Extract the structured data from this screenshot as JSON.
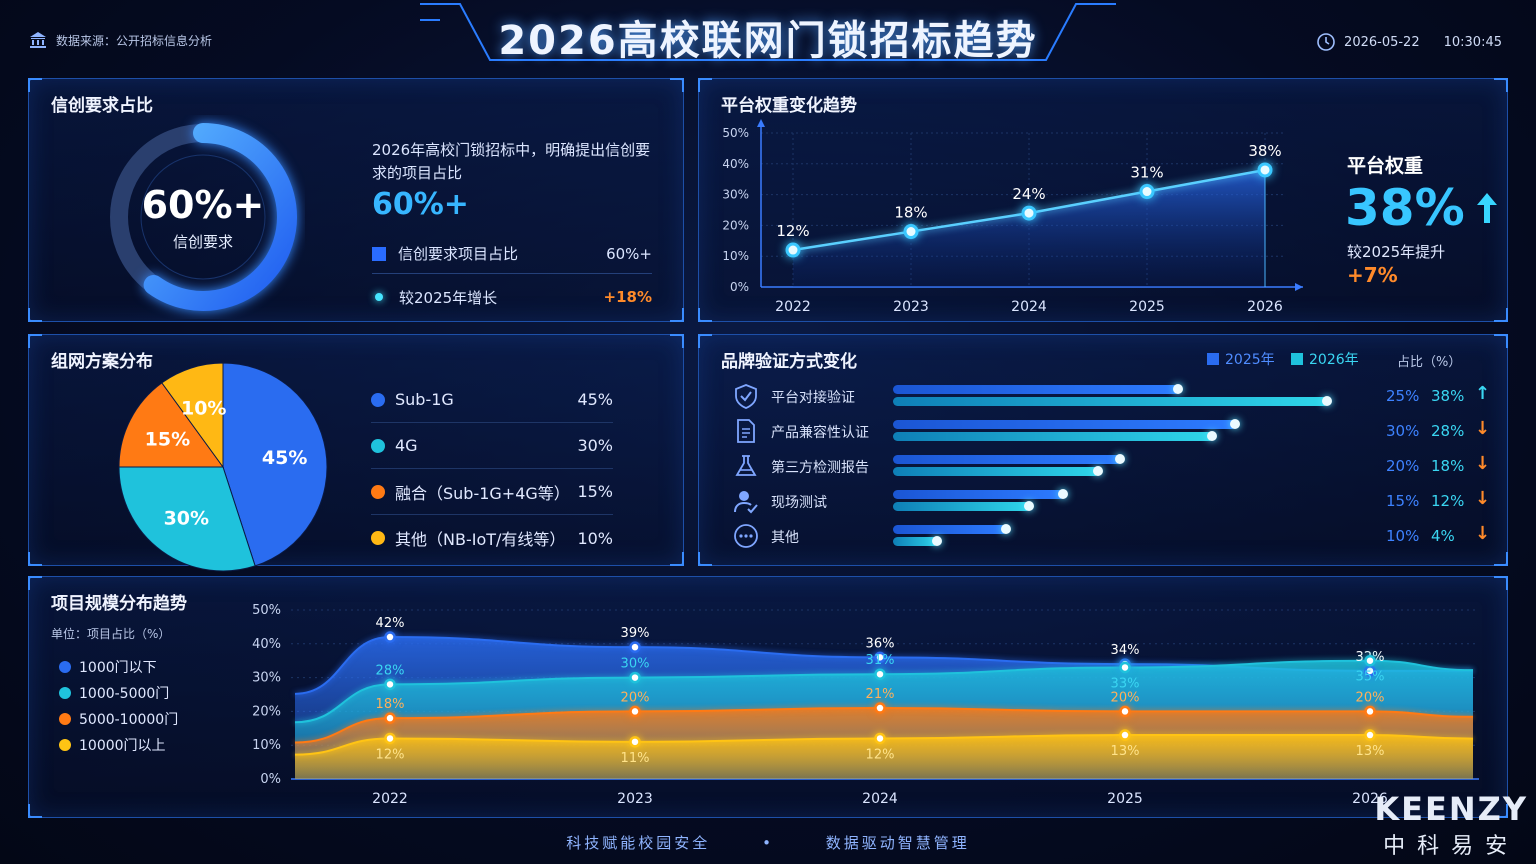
{
  "header": {
    "title": "2026高校联网门锁招标趋势",
    "source": "数据来源：公开招标信息分析",
    "date": "2026-05-22",
    "time": "10:30:45"
  },
  "panel_xinchuang": {
    "title": "信创要求占比",
    "center_value": "60%+",
    "center_label": "信创要求",
    "desc": "2026年高校门锁招标中，明确提出信创要求的项目占比",
    "big": "60%+",
    "row1_label": "信创要求项目占比",
    "row1_value": "60%+",
    "row2_label": "较2025年增长",
    "row2_value": "+18%"
  },
  "panel_platform": {
    "title": "平台权重变化趋势",
    "kpi_title": "平台权重",
    "kpi_value": "38%",
    "kpi_sub": "较2025年提升",
    "kpi_delta": "+7%"
  },
  "panel_network": {
    "title": "组网方案分布",
    "items": [
      {
        "name": "Sub-1G",
        "value": "45%",
        "color": "#2a6cf0"
      },
      {
        "name": "4G",
        "value": "30%",
        "color": "#1fc2dc"
      },
      {
        "name": "融合（Sub-1G+4G等）",
        "value": "15%",
        "color": "#ff7a14"
      },
      {
        "name": "其他（NB-IoT/有线等）",
        "value": "10%",
        "color": "#ffb814"
      }
    ]
  },
  "panel_brand": {
    "title": "品牌验证方式变化",
    "legend_2025": "2025年",
    "legend_2026": "2026年",
    "unit": "占比（%）",
    "rows": [
      {
        "label": "平台对接验证",
        "icon": "shield-check-icon",
        "v2025": "25%",
        "v2026": "38%",
        "trend": "up"
      },
      {
        "label": "产品兼容性认证",
        "icon": "document-icon",
        "v2025": "30%",
        "v2026": "28%",
        "trend": "down"
      },
      {
        "label": "第三方检测报告",
        "icon": "flask-icon",
        "v2025": "20%",
        "v2026": "18%",
        "trend": "down"
      },
      {
        "label": "现场测试",
        "icon": "person-check-icon",
        "v2025": "15%",
        "v2026": "12%",
        "trend": "down"
      },
      {
        "label": "其他",
        "icon": "more-icon",
        "v2025": "10%",
        "v2026": "4%",
        "trend": "down"
      }
    ]
  },
  "panel_scale": {
    "title": "项目规模分布趋势",
    "unit": "单位：项目占比（%）"
  },
  "footer": {
    "slogan1": "科技赋能校园安全",
    "slogan2": "数据驱动智慧管理"
  },
  "brand": {
    "en": "KEENZY",
    "cn": "中科易安"
  },
  "colors": {
    "accent": "#38c6ff",
    "orange": "#ff8a2a",
    "blue": "#2a6cf0",
    "cyan": "#1fc2dc",
    "yellow": "#ffb814"
  },
  "chart_data": [
    {
      "type": "pie",
      "title": "信创要求占比",
      "categories": [
        "信创要求"
      ],
      "values": [
        60
      ]
    },
    {
      "type": "line",
      "title": "平台权重变化趋势",
      "x": [
        2022,
        2023,
        2024,
        2025,
        2026
      ],
      "values": [
        12,
        18,
        24,
        31,
        38
      ],
      "labels": [
        "12%",
        "18%",
        "24%",
        "31%",
        "38%"
      ],
      "ylim": [
        0,
        50
      ],
      "yticks": [
        "0%",
        "10%",
        "20%",
        "30%",
        "40%",
        "50%"
      ]
    },
    {
      "type": "pie",
      "title": "组网方案分布",
      "categories": [
        "Sub-1G",
        "4G",
        "融合（Sub-1G+4G等）",
        "其他（NB-IoT/有线等）"
      ],
      "values": [
        45,
        30,
        15,
        10
      ]
    },
    {
      "type": "bar",
      "title": "品牌验证方式变化",
      "categories": [
        "平台对接验证",
        "产品兼容性认证",
        "第三方检测报告",
        "现场测试",
        "其他"
      ],
      "series": [
        {
          "name": "2025年",
          "values": [
            25,
            30,
            20,
            15,
            10
          ]
        },
        {
          "name": "2026年",
          "values": [
            38,
            28,
            18,
            12,
            4
          ]
        }
      ]
    },
    {
      "type": "area",
      "title": "项目规模分布趋势",
      "x": [
        2022,
        2023,
        2024,
        2025,
        2026
      ],
      "ylim": [
        0,
        50
      ],
      "yticks": [
        "0%",
        "10%",
        "20%",
        "30%",
        "40%",
        "50%"
      ],
      "series": [
        {
          "name": "1000门以下",
          "values": [
            42,
            39,
            36,
            34,
            32
          ],
          "color": "#2a6cf0"
        },
        {
          "name": "1000-5000门",
          "values": [
            28,
            30,
            31,
            33,
            35
          ],
          "color": "#1fc2dc"
        },
        {
          "name": "5000-10000门",
          "values": [
            18,
            20,
            21,
            20,
            20
          ],
          "color": "#ff7a14"
        },
        {
          "name": "10000门以上",
          "values": [
            12,
            11,
            12,
            13,
            13
          ],
          "color": "#ffc414"
        }
      ]
    }
  ]
}
